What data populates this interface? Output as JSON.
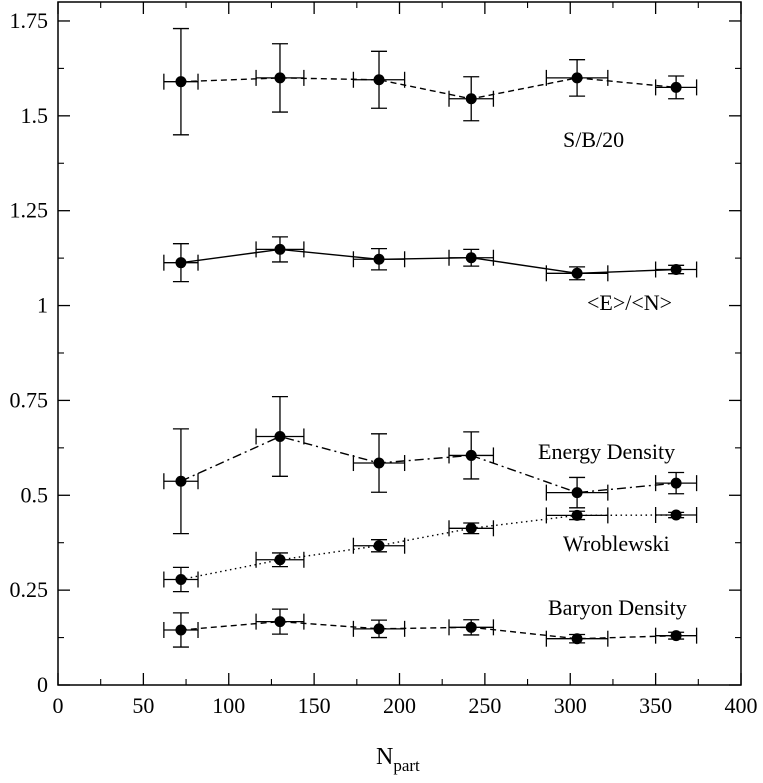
{
  "chart_data": {
    "type": "scatter",
    "title": "",
    "xlabel": "N",
    "xlabel_subscript": "part",
    "ylabel": "",
    "xlim": [
      0,
      400
    ],
    "ylim": [
      0,
      1.8
    ],
    "x_ticks": [
      0,
      50,
      100,
      150,
      200,
      250,
      300,
      350,
      400
    ],
    "x_tick_labels": [
      "0",
      "50",
      "100",
      "150",
      "200",
      "250",
      "300",
      "350",
      "400"
    ],
    "y_ticks": [
      0,
      0.25,
      0.5,
      0.75,
      1,
      1.25,
      1.5,
      1.75
    ],
    "y_tick_labels": [
      "0",
      "0.25",
      "0.5",
      "0.75",
      "1",
      "1.25",
      "1.5",
      "1.75"
    ],
    "series": [
      {
        "name": "S/B/20",
        "line_style": "dashed",
        "x": [
          72,
          130,
          188,
          242,
          304,
          362
        ],
        "y": [
          1.59,
          1.6,
          1.595,
          1.545,
          1.6,
          1.575
        ],
        "x_err": [
          10,
          14,
          15,
          13,
          18,
          12
        ],
        "y_err": [
          0.14,
          0.09,
          0.075,
          0.058,
          0.048,
          0.03
        ]
      },
      {
        "name": "<E>/<N>",
        "line_style": "solid",
        "x": [
          72,
          130,
          188,
          242,
          304,
          362
        ],
        "y": [
          1.113,
          1.148,
          1.122,
          1.126,
          1.085,
          1.095
        ],
        "x_err": [
          10,
          14,
          15,
          13,
          18,
          12
        ],
        "y_err": [
          0.05,
          0.033,
          0.028,
          0.022,
          0.017,
          0.011
        ]
      },
      {
        "name": "Energy Density",
        "line_style": "dashdot",
        "x": [
          72,
          130,
          188,
          242,
          304,
          362
        ],
        "y": [
          0.537,
          0.655,
          0.585,
          0.605,
          0.507,
          0.532
        ],
        "x_err": [
          10,
          14,
          15,
          13,
          18,
          12
        ],
        "y_err": [
          0.138,
          0.105,
          0.077,
          0.062,
          0.04,
          0.028
        ]
      },
      {
        "name": "Wroblewski",
        "line_style": "dotted",
        "x": [
          72,
          130,
          188,
          242,
          304,
          362
        ],
        "y": [
          0.278,
          0.33,
          0.367,
          0.413,
          0.447,
          0.448
        ],
        "x_err": [
          10,
          14,
          15,
          13,
          18,
          12
        ],
        "y_err": [
          0.032,
          0.018,
          0.016,
          0.014,
          0.011,
          0.007
        ]
      },
      {
        "name": "Baryon Density",
        "line_style": "dashed",
        "x": [
          72,
          130,
          188,
          242,
          304,
          362
        ],
        "y": [
          0.145,
          0.167,
          0.148,
          0.152,
          0.122,
          0.13
        ],
        "x_err": [
          10,
          14,
          15,
          13,
          18,
          12
        ],
        "y_err": [
          0.045,
          0.033,
          0.023,
          0.02,
          0.011,
          0.009
        ]
      }
    ],
    "annotations": [
      "S/B/20",
      "<E>/<N>",
      "Energy Density",
      "Wroblewski",
      "Baryon Density"
    ]
  }
}
